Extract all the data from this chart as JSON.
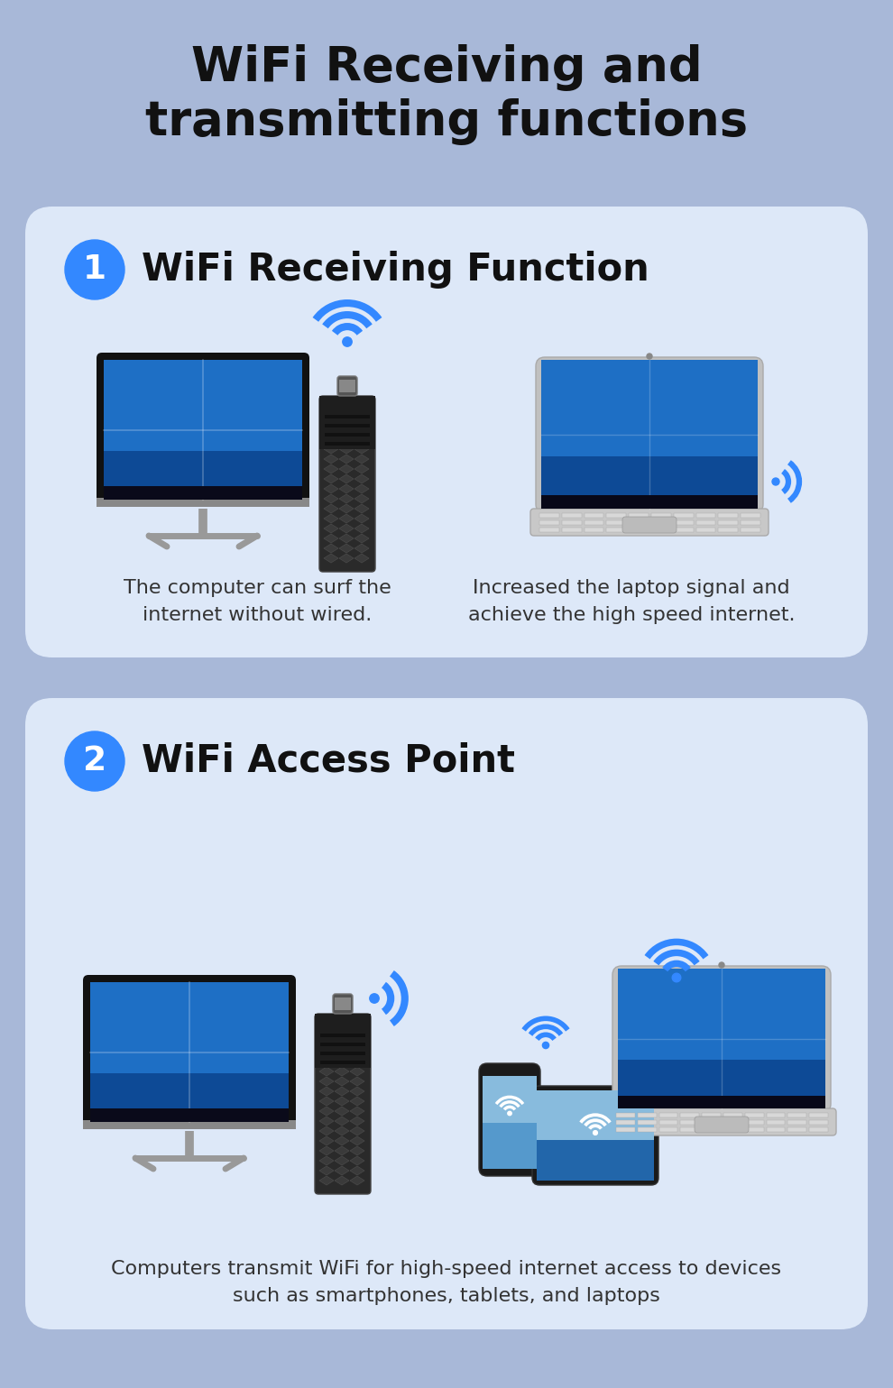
{
  "bg_color": "#a8b8d8",
  "card_color": "#dde8f8",
  "title_line1": "WiFi Receiving and",
  "title_line2": "transmitting functions",
  "title_fontsize": 38,
  "title_color": "#111111",
  "section1_title": "WiFi Receiving Function",
  "section1_number": "1",
  "section2_title": "WiFi Access Point",
  "section2_number": "2",
  "number_bg_color": "#3388ff",
  "number_color": "#ffffff",
  "desc1_left": "The computer can surf the\ninternet without wired.",
  "desc1_right": "Increased the laptop signal and\nachieve the high speed internet.",
  "desc2": "Computers transmit WiFi for high-speed internet access to devices\nsuch as smartphones, tablets, and laptops",
  "wifi_color": "#3388ff",
  "section_title_fontsize": 30,
  "desc_fontsize": 16
}
